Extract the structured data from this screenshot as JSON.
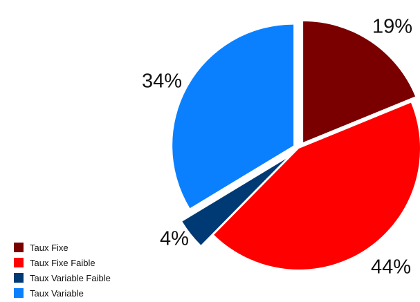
{
  "chart_data": {
    "type": "pie",
    "title": "",
    "slices": [
      {
        "label": "Taux Fixe",
        "value": 19,
        "value_label": "19%",
        "color": "#7a0000"
      },
      {
        "label": "Taux Fixe Faible",
        "value": 44,
        "value_label": "44%",
        "color": "#ff0000"
      },
      {
        "label": "Taux Variable Faible",
        "value": 4,
        "value_label": "4%",
        "color": "#003a75"
      },
      {
        "label": "Taux Variable",
        "value": 34,
        "value_label": "34%",
        "color": "#0a80ff"
      }
    ],
    "exploded": true,
    "legend_position": "bottom-left"
  }
}
